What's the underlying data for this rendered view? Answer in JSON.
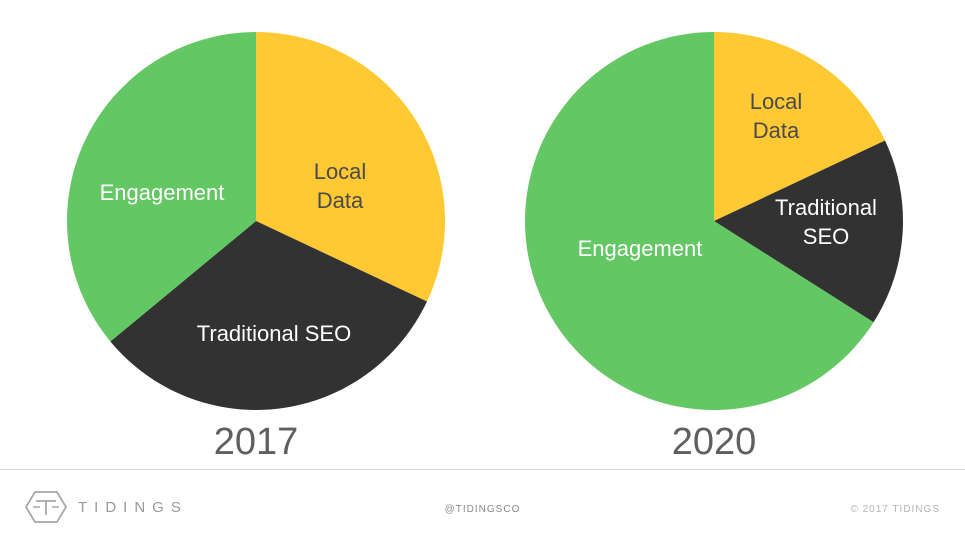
{
  "chart_data": [
    {
      "type": "pie",
      "title": "2017",
      "slices": [
        {
          "label": "Local Data",
          "value": 32,
          "color": "#FFC933"
        },
        {
          "label": "Traditional SEO",
          "value": 32,
          "color": "#323232"
        },
        {
          "label": "Engagement",
          "value": 36,
          "color": "#63C764"
        }
      ]
    },
    {
      "type": "pie",
      "title": "2020",
      "slices": [
        {
          "label": "Local Data",
          "value": 18,
          "color": "#FFC933"
        },
        {
          "label": "Traditional SEO",
          "value": 16,
          "color": "#323232"
        },
        {
          "label": "Engagement",
          "value": 66,
          "color": "#63C764"
        }
      ]
    }
  ],
  "footer": {
    "logo_text": "TIDINGS",
    "logo_icon": "tidings-hexagon-icon",
    "handle": "@TIDINGSCO",
    "copyright": "© 2017 TIDINGS"
  }
}
